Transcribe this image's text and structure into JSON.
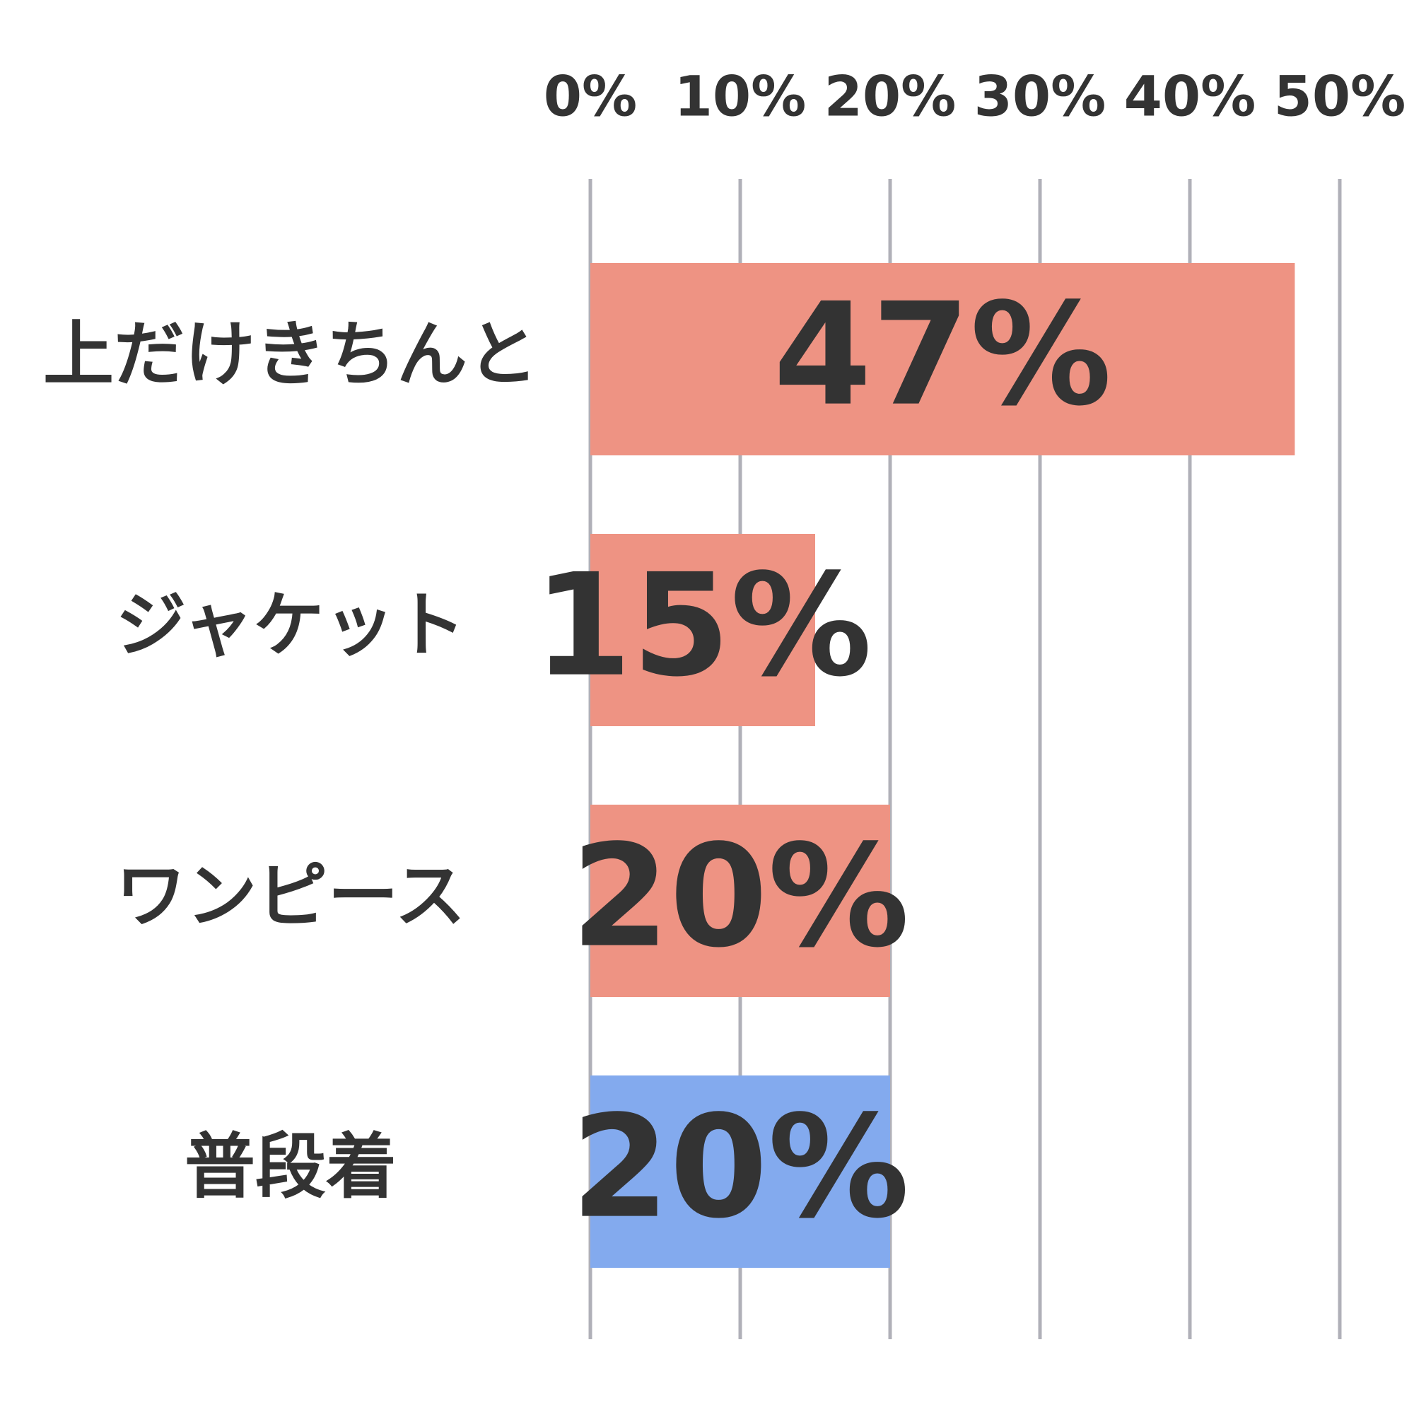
{
  "chart_data": {
    "type": "bar",
    "orientation": "horizontal",
    "categories": [
      "上だけきちんと",
      "ジャケット",
      "ワンピース",
      "普段着"
    ],
    "values": [
      47,
      15,
      20,
      20
    ],
    "value_labels": [
      "47%",
      "15%",
      "20%",
      "20%"
    ],
    "colors": [
      "#ee9383",
      "#ee9383",
      "#ee9383",
      "#83aaee"
    ],
    "xlim": [
      0,
      50
    ],
    "xticks": [
      {
        "value": 0,
        "label": "0%"
      },
      {
        "value": 10,
        "label": "10%"
      },
      {
        "value": 20,
        "label": "20%"
      },
      {
        "value": 30,
        "label": "30%"
      },
      {
        "value": 40,
        "label": "40%"
      },
      {
        "value": 50,
        "label": "50%"
      }
    ],
    "grid": true
  }
}
